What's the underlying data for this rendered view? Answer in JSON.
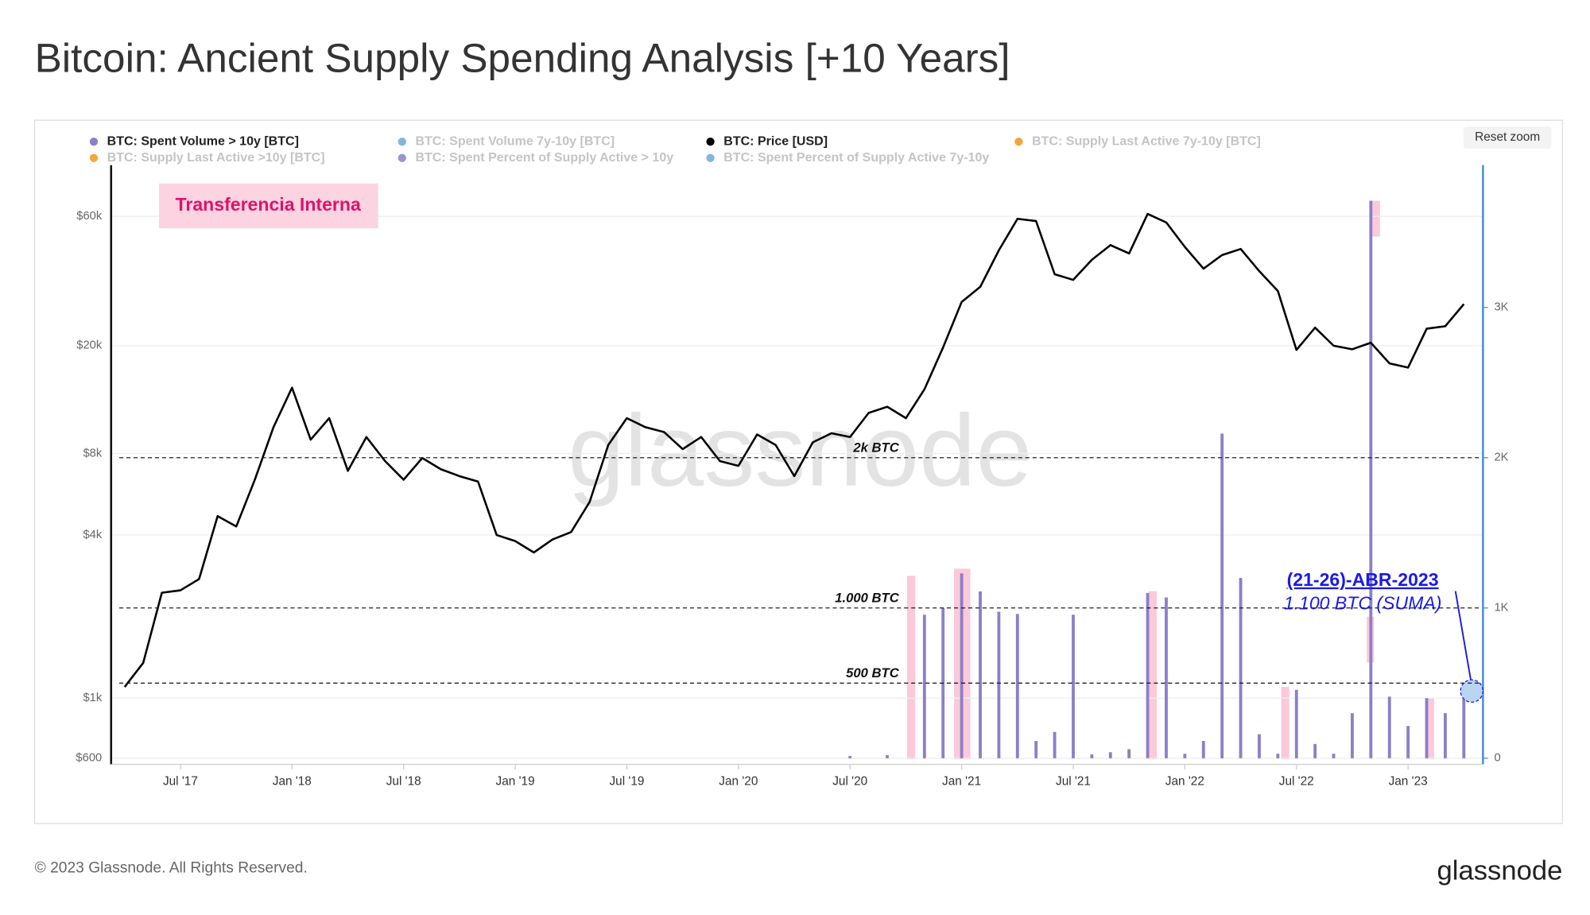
{
  "chart_data": {
    "type": "combo",
    "title": "Bitcoin: Ancient Supply Spending Analysis [+10 Years]",
    "y_scale": "log",
    "grid": true,
    "xlim": [
      "2017-04",
      "2023-05"
    ],
    "xticks": [
      {
        "value": "2017-07",
        "label": "Jul '17"
      },
      {
        "value": "2018-01",
        "label": "Jan '18"
      },
      {
        "value": "2018-07",
        "label": "Jul '18"
      },
      {
        "value": "2019-01",
        "label": "Jan '19"
      },
      {
        "value": "2019-07",
        "label": "Jul '19"
      },
      {
        "value": "2020-01",
        "label": "Jan '20"
      },
      {
        "value": "2020-07",
        "label": "Jul '20"
      },
      {
        "value": "2021-01",
        "label": "Jan '21"
      },
      {
        "value": "2021-07",
        "label": "Jul '21"
      },
      {
        "value": "2022-01",
        "label": "Jan '22"
      },
      {
        "value": "2022-07",
        "label": "Jul '22"
      },
      {
        "value": "2023-01",
        "label": "Jan '23"
      }
    ],
    "ylim": [
      600,
      92000
    ],
    "yticks": [
      {
        "value": 600,
        "label": "$600"
      },
      {
        "value": 1000,
        "label": "$1k"
      },
      {
        "value": 4000,
        "label": "$4k"
      },
      {
        "value": 8000,
        "label": "$8k"
      },
      {
        "value": 20000,
        "label": "$20k"
      },
      {
        "value": 60000,
        "label": "$60k"
      }
    ],
    "y2lim": [
      0,
      3940
    ],
    "y2ticks": [
      0,
      {
        "value": 1000,
        "label": "1K"
      },
      {
        "value": 2000,
        "label": "2K"
      },
      {
        "value": 3000,
        "label": "3K"
      }
    ],
    "series": [
      {
        "name": "BTC: Spent Volume > 10y [BTC]",
        "color": "#8b7fc8",
        "type": "bar",
        "axis": "y2",
        "visible": true,
        "x": [
          "2020-07",
          "2020-09",
          "2020-11",
          "2020-12",
          "2021-01",
          "2021-02",
          "2021-03",
          "2021-04",
          "2021-05",
          "2021-06",
          "2021-07",
          "2021-08",
          "2021-09",
          "2021-10",
          "2021-11",
          "2021-12",
          "2022-01",
          "2022-02",
          "2022-03",
          "2022-04",
          "2022-05",
          "2022-06",
          "2022-07",
          "2022-08",
          "2022-09",
          "2022-10",
          "2022-11",
          "2022-12",
          "2023-01",
          "2023-02",
          "2023-03",
          "2023-04"
        ],
        "values": [
          15,
          20,
          955,
          1000,
          1230,
          1110,
          975,
          960,
          115,
          175,
          955,
          25,
          40,
          60,
          1100,
          1070,
          30,
          115,
          2160,
          1200,
          160,
          30,
          455,
          95,
          30,
          300,
          3710,
          410,
          215,
          400,
          300,
          395
        ]
      },
      {
        "name": "BTC: Spent Volume 7y-10y [BTC]",
        "color": "#6aa9d8",
        "visible": false
      },
      {
        "name": "BTC: Price [USD]",
        "color": "#000000",
        "type": "line",
        "visible": true,
        "x": [
          "2017-04",
          "2017-05",
          "2017-06",
          "2017-07",
          "2017-08",
          "2017-09",
          "2017-10",
          "2017-11",
          "2017-12",
          "2018-01",
          "2018-02",
          "2018-03",
          "2018-04",
          "2018-05",
          "2018-06",
          "2018-07",
          "2018-08",
          "2018-09",
          "2018-10",
          "2018-11",
          "2018-12",
          "2019-01",
          "2019-02",
          "2019-03",
          "2019-04",
          "2019-05",
          "2019-06",
          "2019-07",
          "2019-08",
          "2019-09",
          "2019-10",
          "2019-11",
          "2019-12",
          "2020-01",
          "2020-02",
          "2020-03",
          "2020-04",
          "2020-05",
          "2020-06",
          "2020-07",
          "2020-08",
          "2020-09",
          "2020-10",
          "2020-11",
          "2020-12",
          "2021-01",
          "2021-02",
          "2021-03",
          "2021-04",
          "2021-05",
          "2021-06",
          "2021-07",
          "2021-08",
          "2021-09",
          "2021-10",
          "2021-11",
          "2021-12",
          "2022-01",
          "2022-02",
          "2022-03",
          "2022-04",
          "2022-05",
          "2022-06",
          "2022-07",
          "2022-08",
          "2022-09",
          "2022-10",
          "2022-11",
          "2022-12",
          "2023-01",
          "2023-02",
          "2023-03",
          "2023-04"
        ],
        "values": [
          1100,
          1350,
          2450,
          2500,
          2750,
          4700,
          4300,
          6400,
          10000,
          14000,
          9000,
          10800,
          6900,
          9200,
          7500,
          6400,
          7700,
          7000,
          6600,
          6300,
          4000,
          3800,
          3450,
          3850,
          4100,
          5300,
          8600,
          10800,
          10000,
          9600,
          8300,
          9200,
          7500,
          7200,
          9400,
          8600,
          6600,
          8800,
          9500,
          9200,
          11300,
          11900,
          10800,
          13800,
          19700,
          29000,
          33000,
          45000,
          58800,
          57700,
          36700,
          35000,
          41500,
          47000,
          43800,
          61300,
          57000,
          46300,
          38500,
          43200,
          45500,
          37700,
          31800,
          19300,
          23300,
          20000,
          19400,
          20500,
          17200,
          16600,
          23100,
          23600,
          28500
        ]
      },
      {
        "name": "BTC: Supply Last Active 7y-10y [BTC]",
        "color": "#f7931a",
        "visible": false
      },
      {
        "name": "BTC: Supply Last Active >10y [BTC]",
        "color": "#f7931a",
        "visible": false
      },
      {
        "name": "BTC: Spent Percent of Supply Active > 10y",
        "color": "#8b7fc8",
        "visible": false
      },
      {
        "name": "BTC: Spent Percent of Supply Active 7y-10y",
        "color": "#6aa9d8",
        "visible": false
      }
    ],
    "reference_lines": [
      {
        "label": "2k BTC",
        "value": 2000
      },
      {
        "label": "1.000 BTC",
        "value": 1000
      },
      {
        "label": "500 BTC",
        "value": 500
      }
    ],
    "annotations": [
      "Transferencia Interna",
      "(21-26)-ABR-2023",
      "1.100 BTC (SUMA)"
    ],
    "watermark": "glassnode",
    "reset_zoom": "Reset zoom"
  },
  "footer": {
    "copyright": "© 2023 Glassnode. All Rights Reserved.",
    "logo": "glassnode"
  }
}
